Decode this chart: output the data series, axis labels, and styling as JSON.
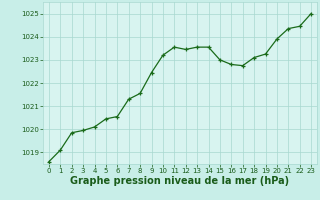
{
  "x": [
    0,
    1,
    2,
    3,
    4,
    5,
    6,
    7,
    8,
    9,
    10,
    11,
    12,
    13,
    14,
    15,
    16,
    17,
    18,
    19,
    20,
    21,
    22,
    23
  ],
  "y": [
    1018.6,
    1019.1,
    1019.85,
    1019.95,
    1020.1,
    1020.45,
    1020.55,
    1021.3,
    1021.55,
    1022.45,
    1023.2,
    1023.55,
    1023.45,
    1023.55,
    1023.55,
    1023.0,
    1022.8,
    1022.75,
    1023.1,
    1023.25,
    1023.9,
    1024.35,
    1024.45,
    1025.0
  ],
  "ylim": [
    1018.5,
    1025.5
  ],
  "yticks": [
    1019,
    1020,
    1021,
    1022,
    1023,
    1024,
    1025
  ],
  "xlim": [
    -0.5,
    23.5
  ],
  "xticks": [
    0,
    1,
    2,
    3,
    4,
    5,
    6,
    7,
    8,
    9,
    10,
    11,
    12,
    13,
    14,
    15,
    16,
    17,
    18,
    19,
    20,
    21,
    22,
    23
  ],
  "line_color": "#1a6b1a",
  "marker": "+",
  "marker_color": "#1a6b1a",
  "bg_color": "#c8eee8",
  "grid_color": "#a8d8d0",
  "xlabel": "Graphe pression niveau de la mer (hPa)",
  "xlabel_color": "#1a5c1a",
  "tick_color": "#1a5c1a",
  "tick_fontsize": 5.0,
  "xlabel_fontsize": 7.0,
  "plot_bg_color": "#d8f4f0",
  "linewidth": 0.9,
  "markersize": 3.5,
  "markeredgewidth": 0.9
}
